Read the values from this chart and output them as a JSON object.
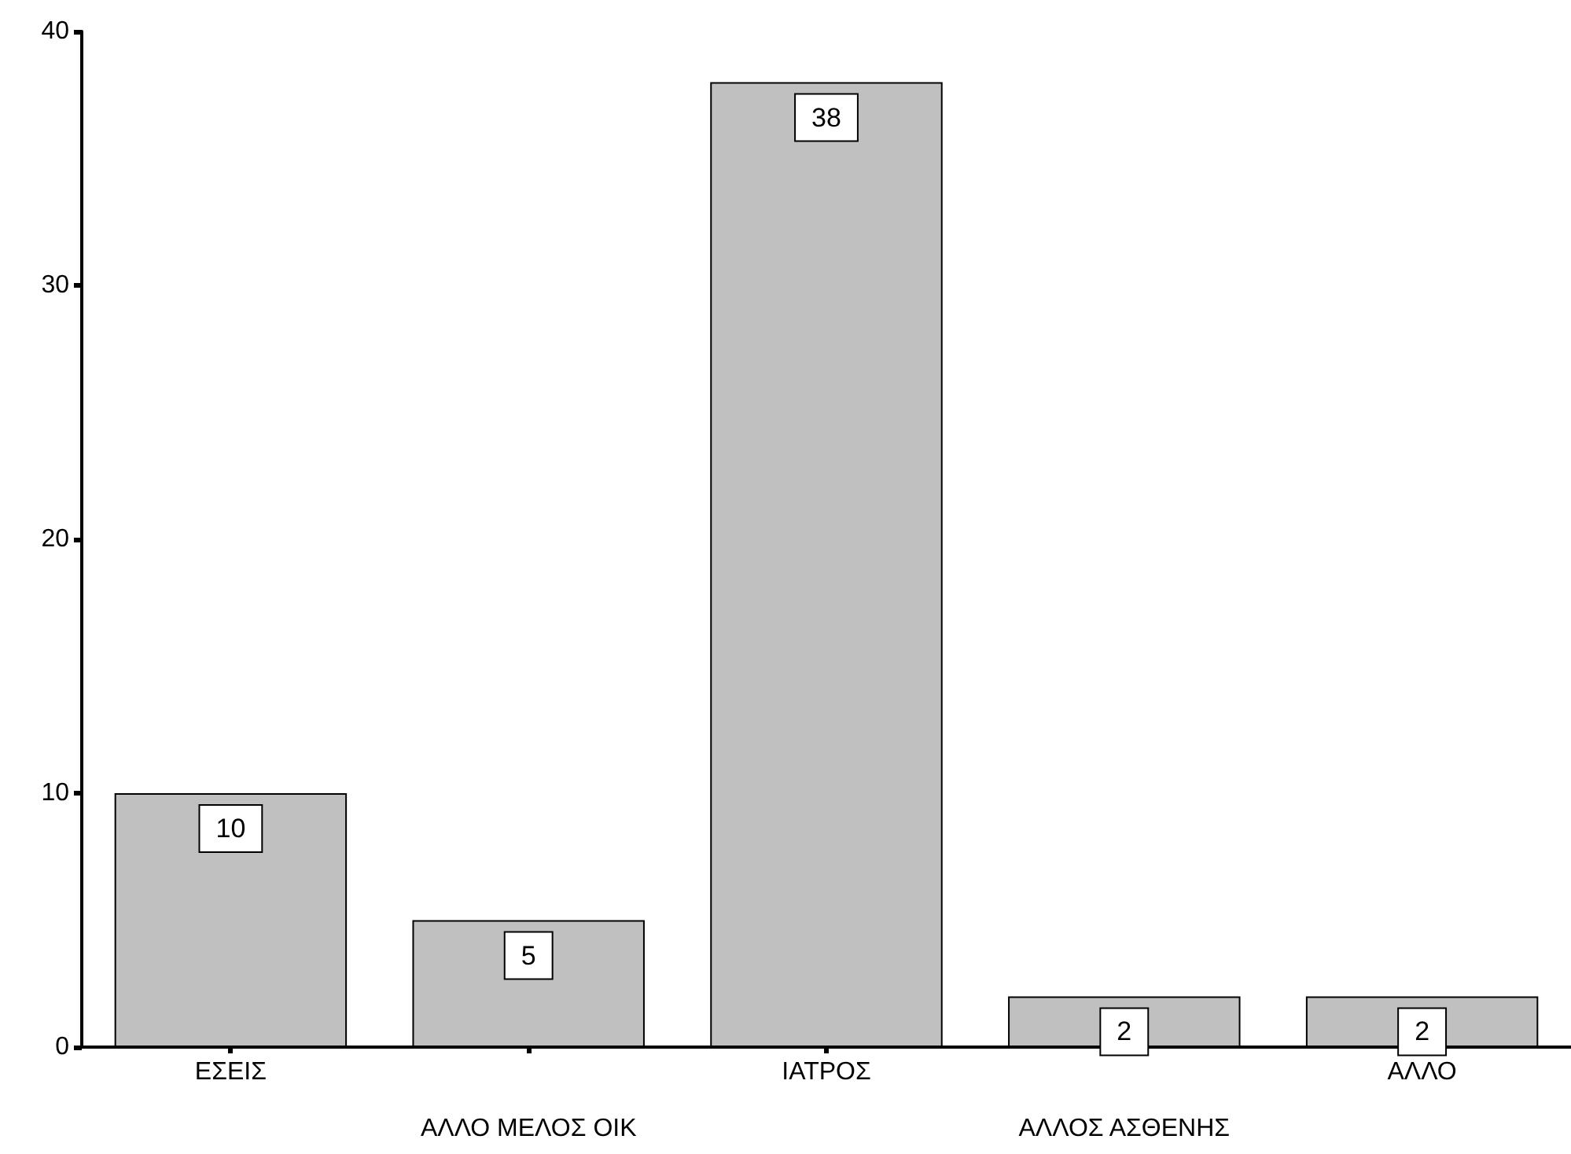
{
  "chart_data": {
    "type": "bar",
    "categories": [
      "ΕΣΕΙΣ",
      "ΑΛΛΟ ΜΕΛΟΣ ΟΙΚ",
      "ΙΑΤΡΟΣ",
      "ΑΛΛΟΣ ΑΣΘΕΝΗΣ",
      "ΑΛΛΟ"
    ],
    "values": [
      10,
      5,
      38,
      2,
      2
    ],
    "color": "#c0c0c0",
    "data_labels": true,
    "ylim": [
      0,
      40
    ],
    "yticks": [
      0,
      10,
      20,
      30,
      40
    ]
  }
}
